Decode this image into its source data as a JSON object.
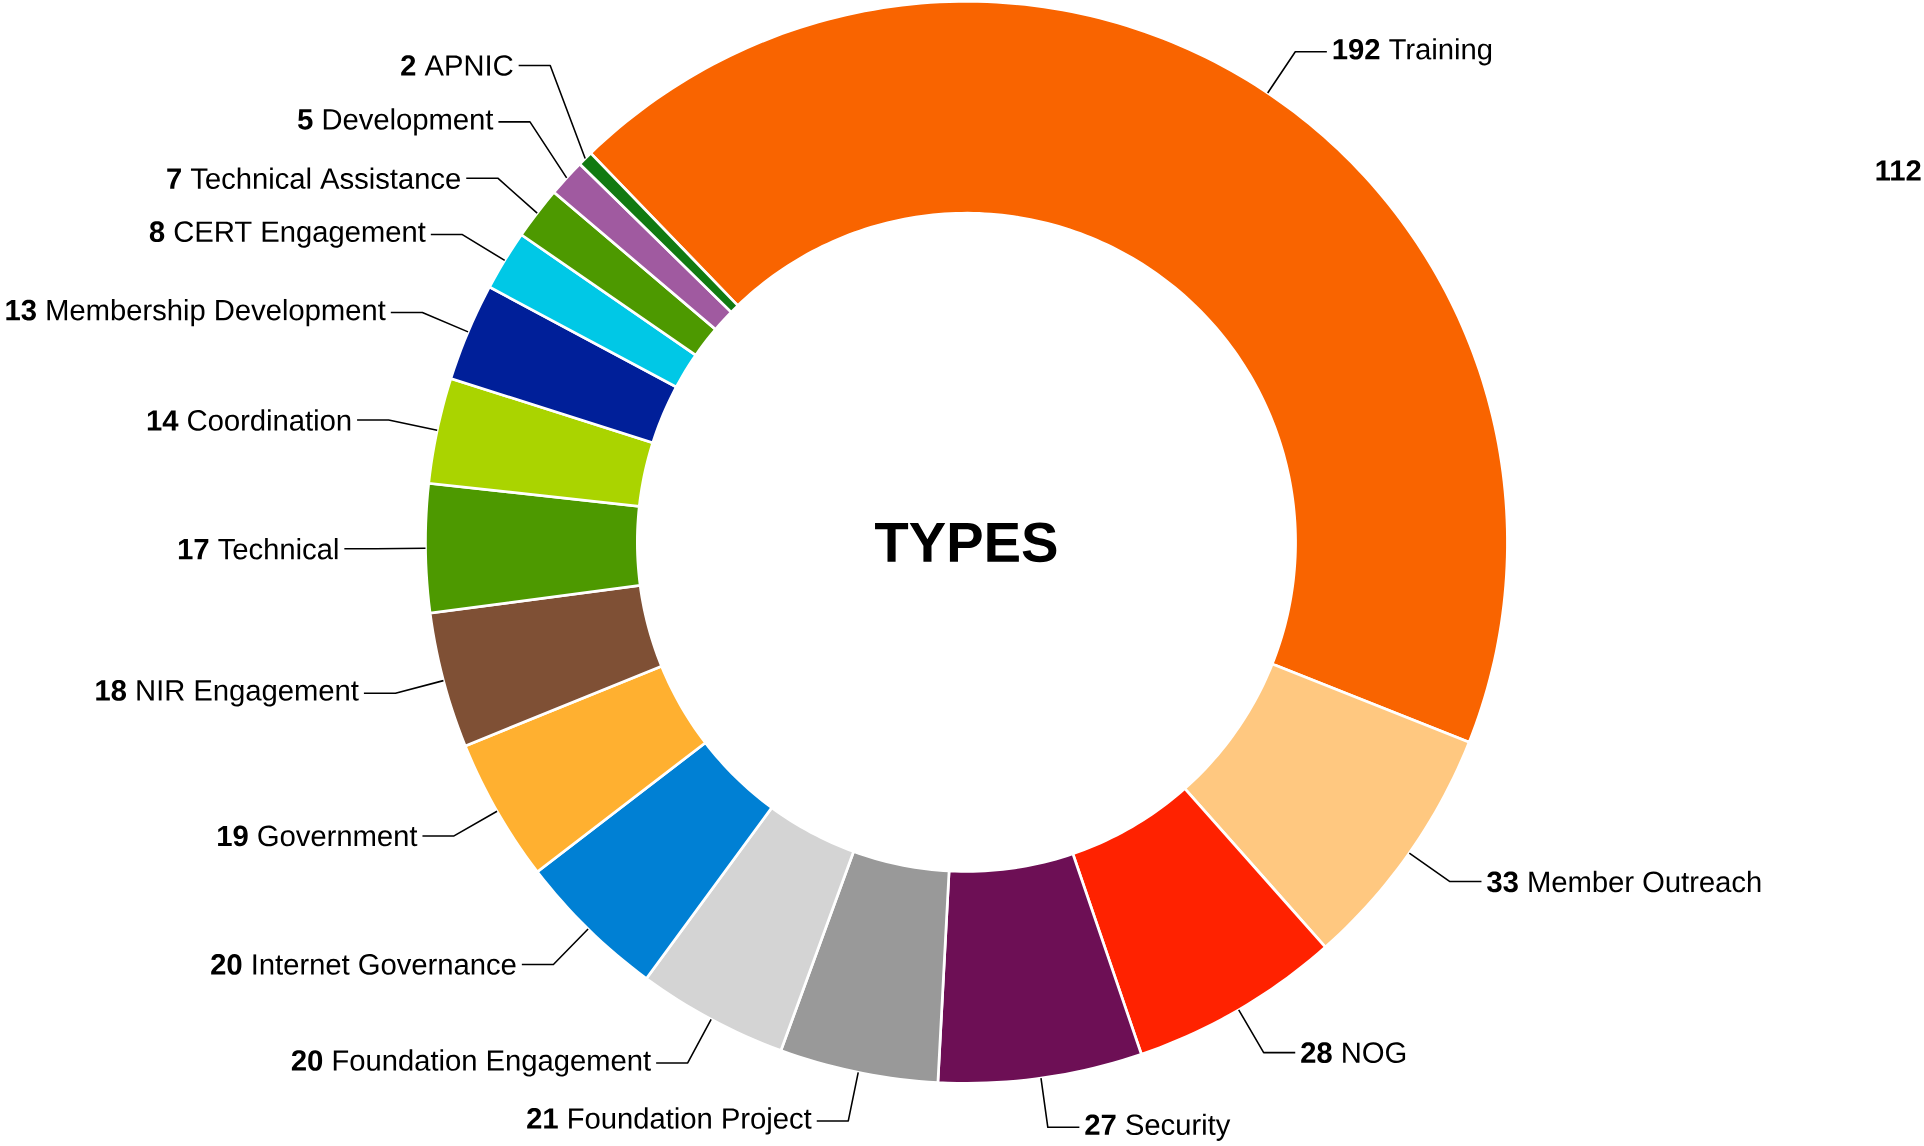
{
  "chart_data": {
    "type": "donut",
    "title": "TYPES",
    "data_labels": true,
    "categories": [
      "Training",
      "Member Outreach",
      "NOG",
      "Security",
      "Foundation Project",
      "Foundation Engagement",
      "Internet Governance",
      "Government",
      "NIR Engagement",
      "Technical",
      "Coordination",
      "Membership Development",
      "CERT Engagement",
      "Technical Assistance",
      "Development",
      "APNIC"
    ],
    "values": [
      192,
      33,
      28,
      27,
      21,
      20,
      20,
      19,
      18,
      17,
      14,
      13,
      8,
      7,
      5,
      2
    ],
    "colors": [
      "#f96400",
      "#ffc880",
      "#ff2200",
      "#6d0f55",
      "#999999",
      "#d4d4d4",
      "#0080d4",
      "#ffb030",
      "#7f5035",
      "#4d9900",
      "#aad400",
      "#001f99",
      "#00c8e6",
      "#4d9900",
      "#a05aa0",
      "#117a11"
    ],
    "annotations": [
      "112"
    ]
  }
}
